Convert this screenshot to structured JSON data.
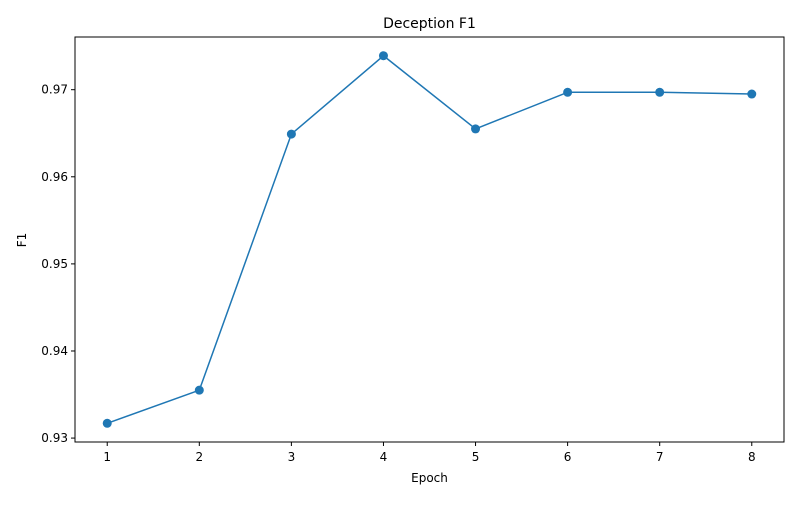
{
  "chart_data": {
    "type": "line",
    "title": "Deception F1",
    "xlabel": "Epoch",
    "ylabel": "F1",
    "x": [
      1,
      2,
      3,
      4,
      5,
      6,
      7,
      8
    ],
    "series": [
      {
        "values": [
          0.9317,
          0.9355,
          0.9649,
          0.9739,
          0.9655,
          0.9697,
          0.9697,
          0.9695
        ],
        "color": "#1f77b4",
        "marker": "circle"
      }
    ],
    "xticks": [
      "1",
      "2",
      "3",
      "4",
      "5",
      "6",
      "7",
      "8"
    ],
    "yticks": [
      "0.93",
      "0.94",
      "0.95",
      "0.96",
      "0.97"
    ],
    "xlim": [
      0.65,
      8.35
    ],
    "ylim": [
      0.92955,
      0.97605
    ],
    "grid": false,
    "legend": "none"
  }
}
